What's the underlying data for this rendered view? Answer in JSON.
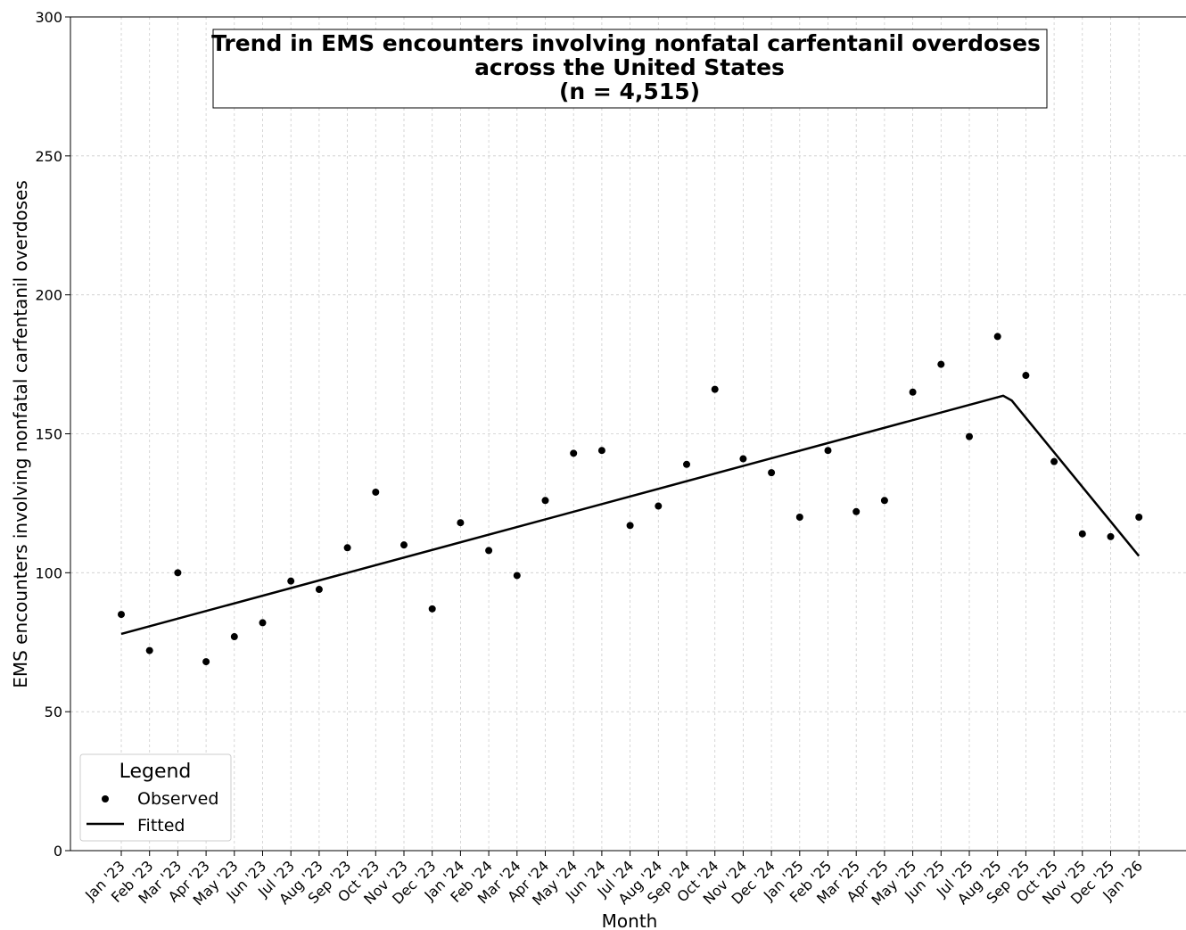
{
  "chart_data": {
    "type": "scatter",
    "title_lines": [
      "Trend in EMS encounters involving nonfatal carfentanil overdoses",
      "across the United States",
      "(n = 4,515)"
    ],
    "xlabel": "Month",
    "ylabel": "EMS encounters involving nonfatal carfentanil overdoses",
    "ylim": [
      0,
      300
    ],
    "yticks": [
      0,
      50,
      100,
      150,
      200,
      250,
      300
    ],
    "grid": true,
    "legend_position": "bottom-left",
    "legend": {
      "title": "Legend",
      "entries": [
        {
          "label": "Observed",
          "marker": "dot"
        },
        {
          "label": "Fitted",
          "marker": "line"
        }
      ]
    },
    "categories": [
      "Jan '23",
      "Feb '23",
      "Mar '23",
      "Apr '23",
      "May '23",
      "Jun '23",
      "Jul '23",
      "Aug '23",
      "Sep '23",
      "Oct '23",
      "Nov '23",
      "Dec '23",
      "Jan '24",
      "Feb '24",
      "Mar '24",
      "Apr '24",
      "May '24",
      "Jun '24",
      "Jul '24",
      "Aug '24",
      "Sep '24",
      "Oct '24",
      "Nov '24",
      "Dec '24",
      "Jan '25",
      "Feb '25",
      "Mar '25",
      "Apr '25",
      "May '25",
      "Jun '25",
      "Jul '25",
      "Aug '25",
      "Sep '25",
      "Oct '25",
      "Nov '25",
      "Dec '25",
      "Jan '26"
    ],
    "series": [
      {
        "name": "Observed",
        "kind": "scatter",
        "color": "#000000",
        "values": [
          85,
          72,
          100,
          68,
          77,
          82,
          97,
          94,
          109,
          129,
          110,
          87,
          118,
          108,
          99,
          126,
          143,
          144,
          117,
          124,
          139,
          166,
          141,
          136,
          120,
          144,
          122,
          126,
          165,
          175,
          149,
          185,
          171,
          140,
          114,
          113,
          120
        ]
      },
      {
        "name": "Fitted",
        "kind": "line",
        "color": "#000000",
        "points": [
          {
            "x": 0,
            "y": 78
          },
          {
            "x": 31.2,
            "y": 163.7
          },
          {
            "x": 31.5,
            "y": 162
          },
          {
            "x": 36,
            "y": 106
          }
        ]
      }
    ]
  }
}
